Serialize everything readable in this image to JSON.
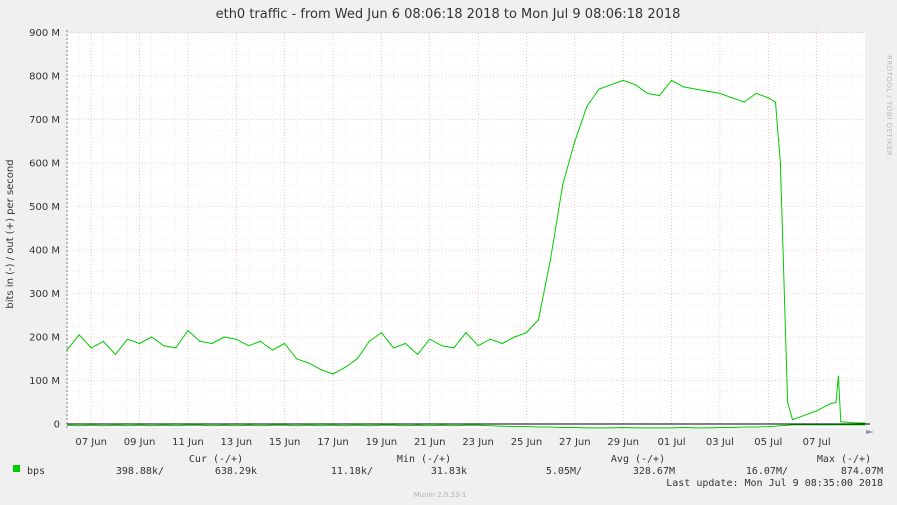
{
  "chart_data": {
    "type": "line",
    "title": "eth0 traffic - from Wed Jun  6 08:06:18 2018 to Mon Jul  9 08:06:18 2018",
    "ylabel": "bits in (-) / out (+) per second",
    "ylim": [
      -10,
      900
    ],
    "y_tick_labels": [
      "0",
      "100 M",
      "200 M",
      "300 M",
      "400 M",
      "500 M",
      "600 M",
      "700 M",
      "800 M",
      "900 M"
    ],
    "y_tick_values": [
      0,
      100,
      200,
      300,
      400,
      500,
      600,
      700,
      800,
      900
    ],
    "x_tick_labels": [
      "07 Jun",
      "09 Jun",
      "11 Jun",
      "13 Jun",
      "15 Jun",
      "17 Jun",
      "19 Jun",
      "21 Jun",
      "23 Jun",
      "25 Jun",
      "27 Jun",
      "29 Jun",
      "01 Jul",
      "03 Jul",
      "05 Jul",
      "07 Jul"
    ],
    "x_tick_days": [
      1,
      3,
      5,
      7,
      9,
      11,
      13,
      15,
      17,
      19,
      21,
      23,
      25,
      27,
      29,
      31
    ],
    "xlim_days": [
      0,
      33
    ],
    "grid": true,
    "series": [
      {
        "name": "bps",
        "color": "#00cc00",
        "x_days": [
          0,
          0.5,
          1,
          1.5,
          2,
          2.5,
          3,
          3.5,
          4,
          4.5,
          5,
          5.5,
          6,
          6.5,
          7,
          7.5,
          8,
          8.5,
          9,
          9.5,
          10,
          10.5,
          11,
          11.5,
          12,
          12.5,
          13,
          13.5,
          14,
          14.5,
          15,
          15.5,
          16,
          16.5,
          17,
          17.5,
          18,
          18.5,
          19,
          19.5,
          20,
          20.5,
          21,
          21.5,
          22,
          22.5,
          23,
          23.5,
          24,
          24.5,
          25,
          25.5,
          26,
          26.5,
          27,
          27.5,
          28,
          28.5,
          29,
          29.3,
          29.5,
          29.8,
          30,
          30.5,
          31,
          31.5,
          31.8,
          31.9,
          32,
          32.5,
          33
        ],
        "values": [
          170,
          205,
          175,
          190,
          160,
          195,
          185,
          200,
          180,
          175,
          215,
          190,
          185,
          200,
          195,
          180,
          190,
          170,
          185,
          150,
          140,
          125,
          115,
          130,
          150,
          190,
          210,
          175,
          185,
          160,
          195,
          180,
          175,
          210,
          180,
          195,
          185,
          200,
          210,
          240,
          380,
          550,
          650,
          730,
          770,
          780,
          790,
          780,
          760,
          755,
          790,
          775,
          770,
          765,
          760,
          750,
          740,
          760,
          750,
          740,
          600,
          50,
          10,
          20,
          30,
          45,
          50,
          110,
          5,
          3,
          2
        ],
        "out_values": [
          -3,
          -4,
          -3,
          -4,
          -3,
          -4,
          -3,
          -4,
          -3,
          -4,
          -3,
          -3,
          -4,
          -3,
          -4,
          -3,
          -4,
          -3,
          -3,
          -4,
          -3,
          -4,
          -3,
          -4,
          -3,
          -4,
          -3,
          -3,
          -4,
          -3,
          -4,
          -3,
          -4,
          -3,
          -3,
          -4,
          -5,
          -6,
          -6,
          -7,
          -7,
          -8,
          -8,
          -9,
          -9,
          -9,
          -8,
          -9,
          -9,
          -9,
          -9,
          -8,
          -9,
          -9,
          -8,
          -8,
          -7,
          -7,
          -6,
          -5,
          -4,
          -3,
          -2,
          -2,
          -2,
          -2,
          -2,
          -2,
          -2,
          -2,
          -2
        ],
        "cur": [
          "398.88k/",
          "638.29k"
        ],
        "min": [
          "11.18k/",
          "31.83k"
        ],
        "avg": [
          "5.05M/",
          "328.67M"
        ],
        "max": [
          "16.07M/",
          "874.07M"
        ]
      }
    ]
  },
  "legend_headers": {
    "cur": "Cur (-/+)",
    "min": "Min (-/+)",
    "avg": "Avg (-/+)",
    "max": "Max (-/+)"
  },
  "last_update": "Last update:  Mon Jul  9 08:35:00 2018",
  "side_text": "RRDTOOL / TOBI OETIKER",
  "footer": "Munin 2.0.33-1"
}
